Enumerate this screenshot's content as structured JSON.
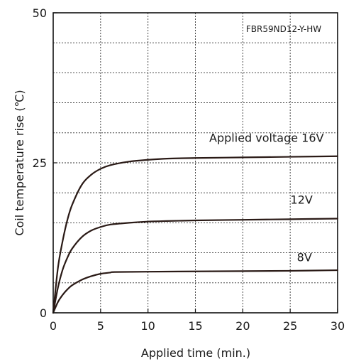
{
  "chart_data": {
    "type": "line",
    "model_label": "FBR59ND12-Y-HW",
    "xlabel": "Applied time (min.)",
    "ylabel": "Coil temperature rise (℃)",
    "xlim": [
      0,
      30
    ],
    "ylim": [
      0,
      50
    ],
    "x_ticks": [
      0,
      5,
      10,
      15,
      20,
      25,
      30
    ],
    "y_ticks": [
      0,
      25,
      50
    ],
    "x_grid": [
      0,
      5,
      10,
      15,
      20,
      25,
      30
    ],
    "y_grid": [
      0,
      5,
      10,
      15,
      20,
      25,
      30,
      35,
      40,
      45,
      50
    ],
    "grid": true,
    "series": [
      {
        "name": "Applied voltage 16V",
        "label": "Applied voltage 16V",
        "label_at": [
          22.5,
          28.5
        ],
        "x": [
          0,
          0.5,
          1,
          1.5,
          2,
          3,
          4,
          5,
          6,
          8,
          10,
          12,
          15,
          20,
          25,
          30
        ],
        "y": [
          0,
          7.5,
          12,
          15.5,
          18,
          21.3,
          23,
          24,
          24.6,
          25.2,
          25.5,
          25.7,
          25.8,
          25.9,
          26.0,
          26.1
        ]
      },
      {
        "name": "12V",
        "label": "12V",
        "label_at": [
          26.2,
          18.2
        ],
        "x": [
          0,
          0.5,
          1,
          1.5,
          2,
          3,
          4,
          5,
          6,
          8,
          10,
          12,
          15,
          20,
          25,
          30
        ],
        "y": [
          0,
          4.2,
          7.2,
          9.2,
          10.7,
          12.6,
          13.7,
          14.3,
          14.7,
          15.0,
          15.2,
          15.3,
          15.4,
          15.5,
          15.6,
          15.7
        ]
      },
      {
        "name": "8V",
        "label": "8V",
        "label_at": [
          26.5,
          8.6
        ],
        "x": [
          0,
          0.5,
          1,
          1.5,
          2,
          3,
          4,
          5,
          6,
          6.5,
          10,
          15,
          20,
          25,
          30
        ],
        "y": [
          0,
          1.8,
          3.0,
          3.9,
          4.6,
          5.5,
          6.1,
          6.5,
          6.7,
          6.8,
          6.85,
          6.9,
          6.95,
          7.0,
          7.1
        ]
      }
    ]
  }
}
